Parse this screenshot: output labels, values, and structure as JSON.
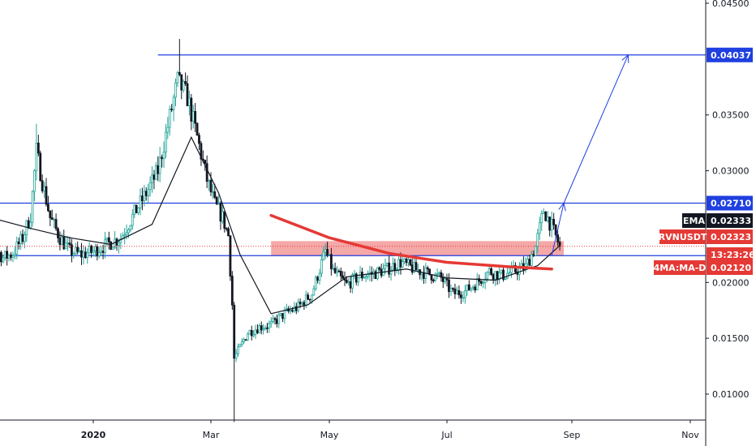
{
  "chart_data": {
    "type": "candlestick",
    "symbol": "RVNUSDT",
    "y_axis": {
      "ticks": [
        "0.04500",
        "0.03500",
        "0.03000",
        "0.02000",
        "0.01500",
        "0.01000"
      ],
      "tick_values": [
        0.045,
        0.035,
        0.03,
        0.02,
        0.015,
        0.01
      ],
      "ylim": [
        0.007,
        0.0455
      ],
      "side": "right"
    },
    "x_axis": {
      "ticks": [
        "2020",
        "Mar",
        "May",
        "Jul",
        "Sep",
        "Nov"
      ],
      "tick_positions": [
        "2020-01-01",
        "2020-03-01",
        "2020-05-01",
        "2020-07-01",
        "2020-09-01",
        "2020-11-01"
      ],
      "xlim": [
        "2019-11-01",
        "2020-11-30"
      ]
    },
    "horizontal_levels": [
      {
        "value": 0.04037,
        "label": "0.04037",
        "from": "2020-02-03"
      },
      {
        "value": 0.0271,
        "label": "0.02710",
        "from": "2019-11-01"
      },
      {
        "value": 0.0224,
        "label": "",
        "from": "2019-11-01"
      }
    ],
    "tags": [
      {
        "name": "EMA",
        "label": "EMA",
        "value": "0.02333"
      },
      {
        "name": "RVNUSDT",
        "label": "RVNUSDT",
        "value": "0.02323"
      },
      {
        "name": "countdown",
        "label": "",
        "value": "13:23:26"
      },
      {
        "name": "4MA:MA-D",
        "label": "4MA:MA-D",
        "value": "0.02120"
      }
    ],
    "current_price": 0.02323,
    "support_zone": {
      "from": "2020-04-01",
      "to": "2020-08-28",
      "low": 0.0224,
      "high": 0.0237
    },
    "ma_line": [
      [
        "2020-04-01",
        0.026
      ],
      [
        "2020-05-01",
        0.024
      ],
      [
        "2020-06-01",
        0.0226
      ],
      [
        "2020-07-01",
        0.0218
      ],
      [
        "2020-08-01",
        0.0214
      ],
      [
        "2020-08-22",
        0.0212
      ]
    ],
    "projection_arrows": [
      [
        [
          "2020-08-22",
          0.0224
        ],
        [
          "2020-08-28",
          0.0271
        ]
      ],
      [
        [
          "2020-08-28",
          0.0271
        ],
        [
          "2020-09-30",
          0.04037
        ]
      ]
    ],
    "close_series": [
      [
        "2019-11-01",
        0.0268
      ],
      [
        "2019-11-06",
        0.0255
      ],
      [
        "2019-11-11",
        0.0232
      ],
      [
        "2019-11-16",
        0.0222
      ],
      [
        "2019-11-21",
        0.0226
      ],
      [
        "2019-11-26",
        0.024
      ],
      [
        "2019-11-30",
        0.026
      ],
      [
        "2019-12-03",
        0.0318
      ],
      [
        "2019-12-06",
        0.029
      ],
      [
        "2019-12-10",
        0.0258
      ],
      [
        "2019-12-15",
        0.024
      ],
      [
        "2019-12-20",
        0.0228
      ],
      [
        "2019-12-26",
        0.0225
      ],
      [
        "2020-01-01",
        0.0228
      ],
      [
        "2020-01-08",
        0.0234
      ],
      [
        "2020-01-15",
        0.024
      ],
      [
        "2020-01-22",
        0.0262
      ],
      [
        "2020-01-28",
        0.028
      ],
      [
        "2020-02-03",
        0.03
      ],
      [
        "2020-02-08",
        0.034
      ],
      [
        "2020-02-13",
        0.038
      ],
      [
        "2020-02-18",
        0.0366
      ],
      [
        "2020-02-23",
        0.033
      ],
      [
        "2020-02-28",
        0.0292
      ],
      [
        "2020-03-03",
        0.027
      ],
      [
        "2020-03-07",
        0.0258
      ],
      [
        "2020-03-10",
        0.0242
      ],
      [
        "2020-03-12",
        0.018
      ],
      [
        "2020-03-13",
        0.0132
      ],
      [
        "2020-03-16",
        0.0142
      ],
      [
        "2020-03-20",
        0.0155
      ],
      [
        "2020-03-26",
        0.016
      ],
      [
        "2020-04-01",
        0.0162
      ],
      [
        "2020-04-08",
        0.0172
      ],
      [
        "2020-04-15",
        0.0178
      ],
      [
        "2020-04-22",
        0.019
      ],
      [
        "2020-04-29",
        0.0228
      ],
      [
        "2020-05-03",
        0.021
      ],
      [
        "2020-05-10",
        0.0198
      ],
      [
        "2020-05-17",
        0.0206
      ],
      [
        "2020-05-24",
        0.0208
      ],
      [
        "2020-05-31",
        0.0212
      ],
      [
        "2020-06-07",
        0.0218
      ],
      [
        "2020-06-14",
        0.0212
      ],
      [
        "2020-06-21",
        0.0208
      ],
      [
        "2020-06-28",
        0.0204
      ],
      [
        "2020-07-04",
        0.019
      ],
      [
        "2020-07-10",
        0.0192
      ],
      [
        "2020-07-16",
        0.02
      ],
      [
        "2020-07-22",
        0.021
      ],
      [
        "2020-07-28",
        0.0206
      ],
      [
        "2020-08-03",
        0.021
      ],
      [
        "2020-08-09",
        0.0214
      ],
      [
        "2020-08-14",
        0.0232
      ],
      [
        "2020-08-18",
        0.0265
      ],
      [
        "2020-08-22",
        0.025
      ],
      [
        "2020-08-26",
        0.0232
      ]
    ],
    "ema_series": [
      [
        "2019-11-01",
        0.0262
      ],
      [
        "2019-12-01",
        0.0248
      ],
      [
        "2019-12-20",
        0.024
      ],
      [
        "2020-01-10",
        0.0234
      ],
      [
        "2020-01-31",
        0.0252
      ],
      [
        "2020-02-20",
        0.033
      ],
      [
        "2020-03-05",
        0.028
      ],
      [
        "2020-03-16",
        0.0225
      ],
      [
        "2020-04-01",
        0.0172
      ],
      [
        "2020-04-20",
        0.018
      ],
      [
        "2020-05-10",
        0.0205
      ],
      [
        "2020-06-10",
        0.0212
      ],
      [
        "2020-07-01",
        0.0204
      ],
      [
        "2020-07-25",
        0.0202
      ],
      [
        "2020-08-15",
        0.0215
      ],
      [
        "2020-08-26",
        0.0233
      ]
    ],
    "colors": {
      "up": "#26a69a",
      "down": "#131722",
      "level": "#1f3fe0",
      "ma": "#e53935",
      "zone": "#f28b8b",
      "ema": "#131722",
      "tag_red": "#e53935",
      "tag_black": "#131722",
      "tag_blue": "#1f3fe0"
    }
  }
}
